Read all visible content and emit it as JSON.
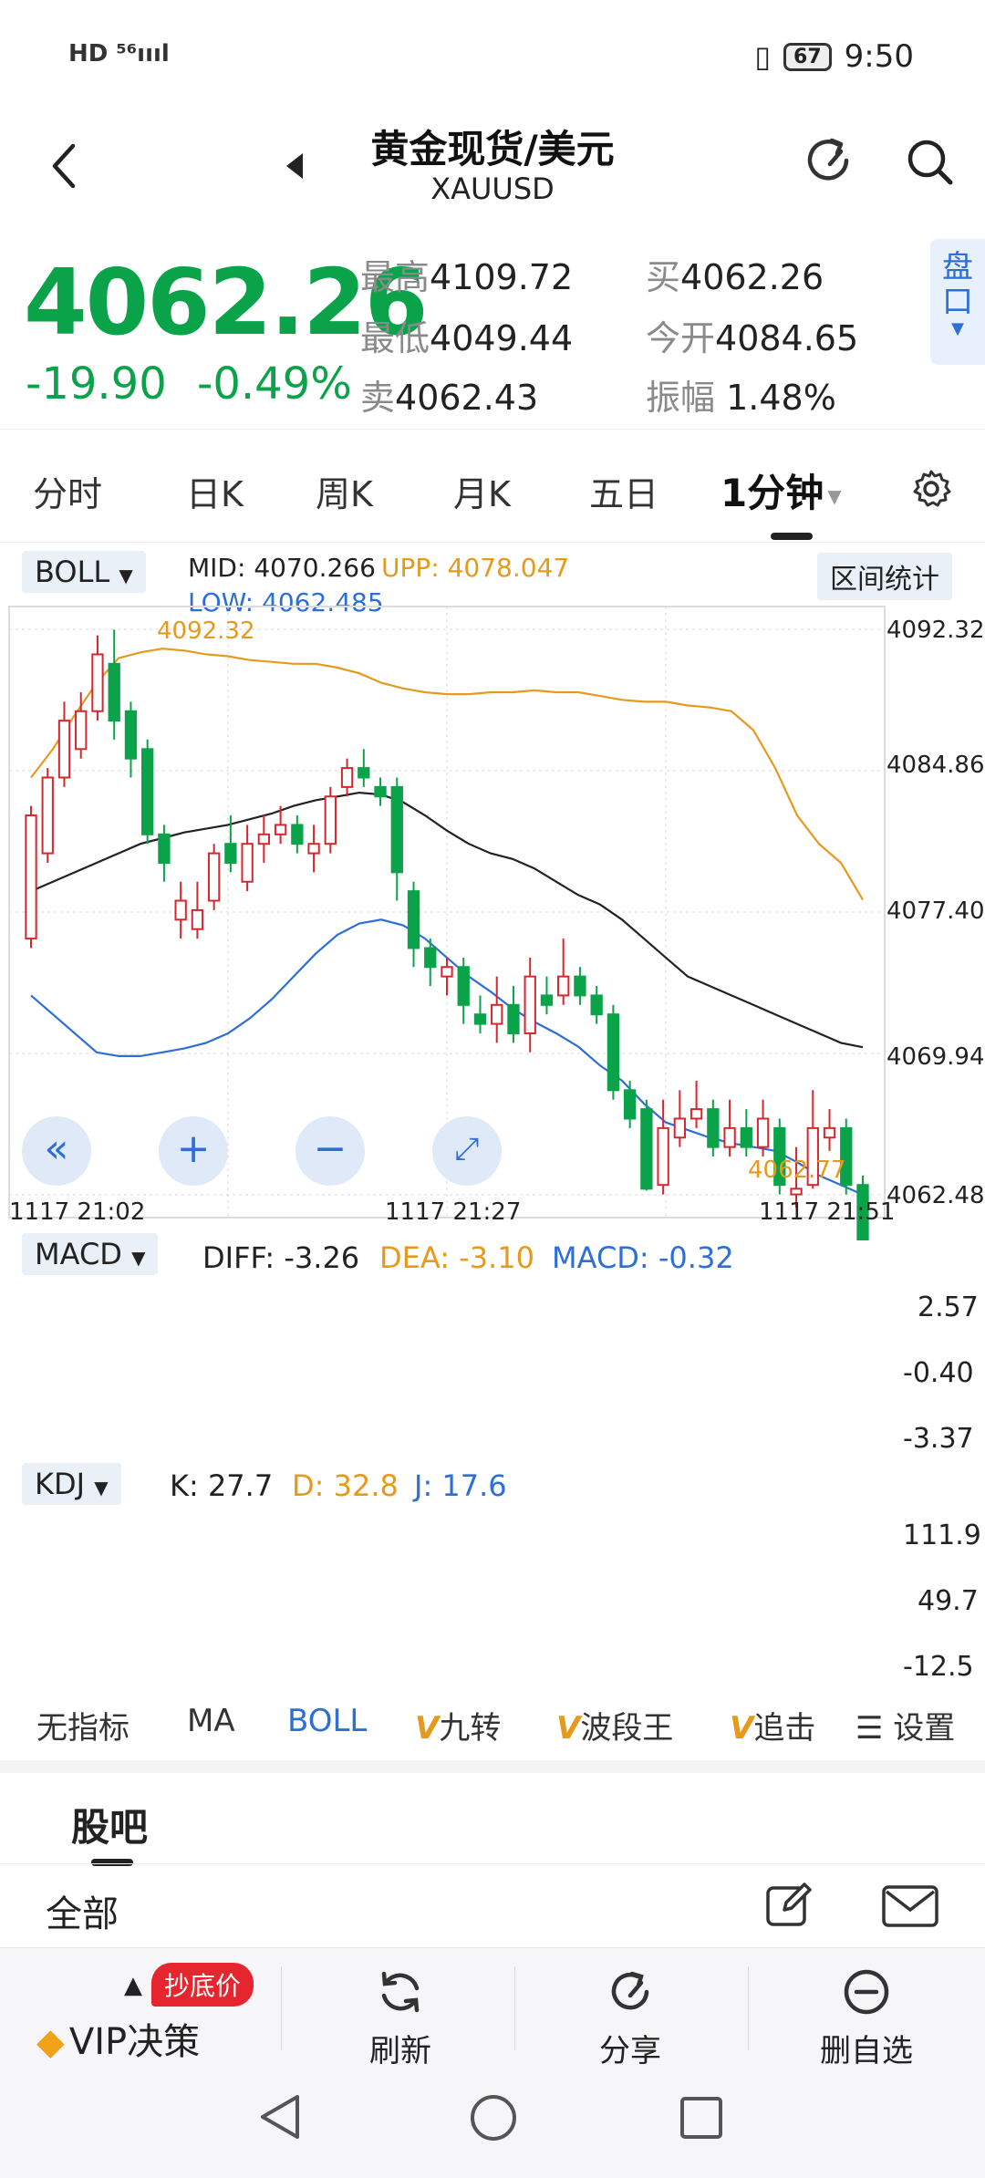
{
  "status": {
    "signal_text": "HD ⁵⁶ıııl",
    "battery": "67",
    "time": "9:50"
  },
  "header": {
    "title": "黄金现货/美元",
    "subtitle": "XAUUSD"
  },
  "quote": {
    "price": "4062.26",
    "change": "-19.90",
    "change_pct": "-0.49%",
    "high_label": "最高",
    "high": "4109.72",
    "low_label": "最低",
    "low": "4049.44",
    "sell_label": "卖",
    "sell": "4062.43",
    "buy_label": "买",
    "buy": "4062.26",
    "open_label": "今开",
    "open": "4084.65",
    "amp_label": "振幅",
    "amp": "1.48%",
    "pankou": "盘口"
  },
  "tabs": [
    "分时",
    "日K",
    "周K",
    "月K",
    "五日",
    "1分钟"
  ],
  "boll": {
    "selector": "BOLL",
    "mid_label": "MID:",
    "mid": "4070.266",
    "upp_label": "UPP:",
    "upp": "4078.047",
    "low_label": "LOW:",
    "low": "4062.485",
    "range_stat": "区间统计",
    "yticks": [
      "4092.32",
      "4084.86",
      "4077.40",
      "4069.94",
      "4062.48"
    ],
    "xticks": [
      "1117  21:02",
      "1117  21:27",
      "1117  21:51"
    ],
    "max_label": "4092.32",
    "min_label": "4062.77"
  },
  "macd": {
    "selector": "MACD",
    "diff": "DIFF: -3.26",
    "dea": "DEA: -3.10",
    "macd": "MACD: -0.32",
    "yticks": [
      "2.57",
      "-0.40",
      "-3.37"
    ]
  },
  "kdj": {
    "selector": "KDJ",
    "k": "K: 27.7",
    "d": "D: 32.8",
    "j": "J: 17.6",
    "yticks": [
      "111.9",
      "49.7",
      "-12.5"
    ]
  },
  "indicator_tabs": [
    "无指标",
    "MA",
    "BOLL",
    "九转",
    "波段王",
    "追击",
    "设置"
  ],
  "guba": {
    "title": "股吧",
    "filter": "全部"
  },
  "bottom": {
    "vip": "VIP决策",
    "vip_badge": "抄底价",
    "refresh": "刷新",
    "share": "分享",
    "remove": "删自选"
  },
  "colors": {
    "green": "#0aa34a",
    "red": "#d6272e",
    "orange": "#e69a1c",
    "blue": "#2d6fd6",
    "black": "#222222"
  },
  "chart_data": {
    "type": "candlestick",
    "interval": "1分钟",
    "ylim": [
      4062.48,
      4092.32
    ],
    "yticks": [
      4092.32,
      4084.86,
      4077.4,
      4069.94,
      4062.48
    ],
    "candles": [
      {
        "o": 4076,
        "c": 4082.5,
        "h": 4083,
        "l": 4075.5
      },
      {
        "o": 4080.5,
        "c": 4084.5,
        "h": 4085,
        "l": 4080
      },
      {
        "o": 4084.5,
        "c": 4087.5,
        "h": 4088.5,
        "l": 4084
      },
      {
        "o": 4086,
        "c": 4088,
        "h": 4089,
        "l": 4085.5
      },
      {
        "o": 4088,
        "c": 4091,
        "h": 4092,
        "l": 4087.5
      },
      {
        "o": 4090.5,
        "c": 4087.5,
        "h": 4092.3,
        "l": 4086.5
      },
      {
        "o": 4088,
        "c": 4085.5,
        "h": 4088.5,
        "l": 4084.5
      },
      {
        "o": 4086,
        "c": 4081.5,
        "h": 4086.5,
        "l": 4081
      },
      {
        "o": 4081.5,
        "c": 4080,
        "h": 4082,
        "l": 4079
      },
      {
        "o": 4077,
        "c": 4078,
        "h": 4079,
        "l": 4076
      },
      {
        "o": 4076.5,
        "c": 4077.5,
        "h": 4079,
        "l": 4076
      },
      {
        "o": 4078,
        "c": 4080.5,
        "h": 4081,
        "l": 4077.5
      },
      {
        "o": 4081,
        "c": 4080,
        "h": 4082.5,
        "l": 4079.5
      },
      {
        "o": 4079,
        "c": 4081,
        "h": 4082,
        "l": 4078.5
      },
      {
        "o": 4081,
        "c": 4081.5,
        "h": 4082.5,
        "l": 4080
      },
      {
        "o": 4081.5,
        "c": 4082,
        "h": 4083,
        "l": 4081
      },
      {
        "o": 4082,
        "c": 4081,
        "h": 4082.5,
        "l": 4080.5
      },
      {
        "o": 4080.5,
        "c": 4081,
        "h": 4082,
        "l": 4079.5
      },
      {
        "o": 4081,
        "c": 4083.5,
        "h": 4084,
        "l": 4080.5
      },
      {
        "o": 4084,
        "c": 4085,
        "h": 4085.5,
        "l": 4083.5
      },
      {
        "o": 4085,
        "c": 4084.5,
        "h": 4086,
        "l": 4084
      },
      {
        "o": 4084,
        "c": 4083.5,
        "h": 4084.5,
        "l": 4083
      },
      {
        "o": 4084,
        "c": 4079.5,
        "h": 4084.5,
        "l": 4078
      },
      {
        "o": 4078.5,
        "c": 4075.5,
        "h": 4079,
        "l": 4074.5
      },
      {
        "o": 4075.5,
        "c": 4074.5,
        "h": 4076,
        "l": 4073.5
      },
      {
        "o": 4074,
        "c": 4074.5,
        "h": 4075,
        "l": 4073
      },
      {
        "o": 4074.5,
        "c": 4072.5,
        "h": 4075,
        "l": 4071.5
      },
      {
        "o": 4072,
        "c": 4071.5,
        "h": 4073,
        "l": 4071
      },
      {
        "o": 4071.5,
        "c": 4072.5,
        "h": 4074,
        "l": 4070.5
      },
      {
        "o": 4072.5,
        "c": 4071,
        "h": 4073.5,
        "l": 4070.5
      },
      {
        "o": 4071,
        "c": 4074,
        "h": 4075,
        "l": 4070
      },
      {
        "o": 4073,
        "c": 4072.5,
        "h": 4074,
        "l": 4072
      },
      {
        "o": 4073,
        "c": 4074,
        "h": 4076,
        "l": 4072.5
      },
      {
        "o": 4074,
        "c": 4073,
        "h": 4074.5,
        "l": 4072.5
      },
      {
        "o": 4073,
        "c": 4072,
        "h": 4073.5,
        "l": 4071.5
      },
      {
        "o": 4072,
        "c": 4068,
        "h": 4072.5,
        "l": 4067.5
      },
      {
        "o": 4068,
        "c": 4066.5,
        "h": 4068.5,
        "l": 4066
      },
      {
        "o": 4067,
        "c": 4062.8,
        "h": 4067.5,
        "l": 4062.7
      },
      {
        "o": 4063,
        "c": 4066,
        "h": 4067.5,
        "l": 4062.5
      },
      {
        "o": 4065.5,
        "c": 4066.5,
        "h": 4068,
        "l": 4065
      },
      {
        "o": 4066.5,
        "c": 4067,
        "h": 4068.5,
        "l": 4066
      },
      {
        "o": 4067,
        "c": 4065,
        "h": 4067.5,
        "l": 4064.5
      },
      {
        "o": 4065,
        "c": 4066,
        "h": 4067.5,
        "l": 4064.5
      },
      {
        "o": 4066,
        "c": 4065,
        "h": 4067,
        "l": 4064.5
      },
      {
        "o": 4065,
        "c": 4066.5,
        "h": 4067.5,
        "l": 4064.5
      },
      {
        "o": 4066,
        "c": 4063,
        "h": 4066.5,
        "l": 4062.5
      },
      {
        "o": 4062.5,
        "c": 4062.8,
        "h": 4065,
        "l": 4061.8
      },
      {
        "o": 4063,
        "c": 4066,
        "h": 4068,
        "l": 4062.8
      },
      {
        "o": 4065.5,
        "c": 4066,
        "h": 4067,
        "l": 4064.8
      },
      {
        "o": 4066,
        "c": 4063,
        "h": 4066.5,
        "l": 4062.5
      },
      {
        "o": 4063,
        "c": 4060,
        "h": 4063.5,
        "l": 4059.5
      }
    ],
    "boll_mid": [
      4078.5,
      4079,
      4079.5,
      4080,
      4080.5,
      4081,
      4081.3,
      4081.6,
      4081.8,
      4082,
      4082.3,
      4082.6,
      4083,
      4083.3,
      4083.5,
      4083.7,
      4083.6,
      4083.2,
      4082.5,
      4081.7,
      4081,
      4080.5,
      4080.2,
      4079.7,
      4079,
      4078.3,
      4077.8,
      4077,
      4076,
      4075,
      4074,
      4073.5,
      4073,
      4072.5,
      4072,
      4071.5,
      4071,
      4070.5,
      4070.266
    ],
    "boll_upp": [
      4084.5,
      4086,
      4087.8,
      4089.5,
      4090.8,
      4091.1,
      4091.3,
      4091.2,
      4091,
      4090.9,
      4090.7,
      4090.6,
      4090.5,
      4090.5,
      4090.3,
      4090,
      4089.5,
      4089.2,
      4089,
      4088.9,
      4088.9,
      4089,
      4089,
      4089.1,
      4089,
      4089,
      4088.8,
      4088.6,
      4088.5,
      4088.5,
      4088.3,
      4088.2,
      4088,
      4087,
      4085,
      4082.5,
      4081,
      4080,
      4078.047
    ],
    "boll_low": [
      4073,
      4072,
      4071,
      4070,
      4069.8,
      4069.8,
      4070,
      4070.2,
      4070.5,
      4071,
      4071.8,
      4072.8,
      4074,
      4075.2,
      4076.2,
      4076.8,
      4077,
      4076.7,
      4076,
      4075,
      4074,
      4073.2,
      4072.3,
      4071.6,
      4071,
      4070.3,
      4069.3,
      4068.5,
      4067.3,
      4066.3,
      4065.9,
      4065.5,
      4065.2,
      4065,
      4064.8,
      4064.2,
      4063.5,
      4063,
      4062.485
    ]
  }
}
